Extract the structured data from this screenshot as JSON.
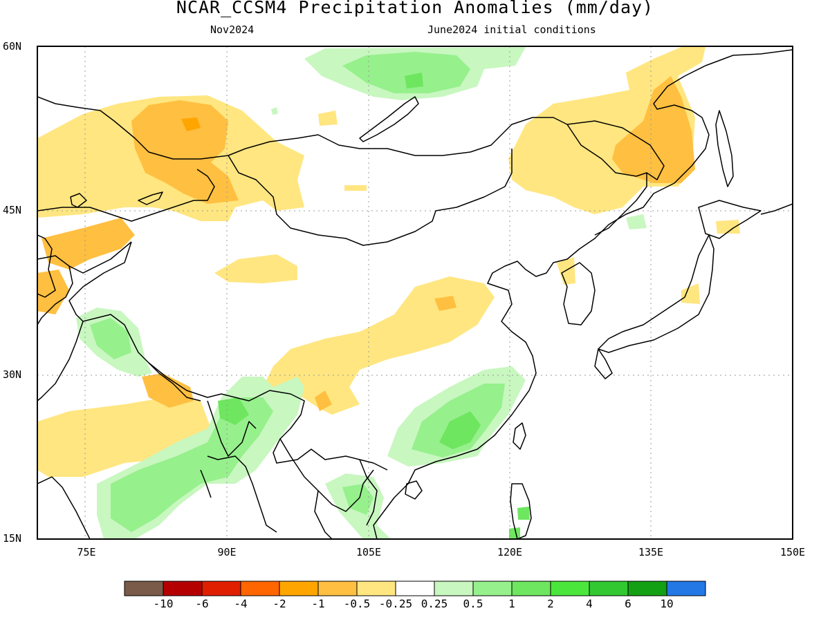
{
  "title": "NCAR_CCSM4 Precipitation Anomalies (mm/day)",
  "subtitle_left": "Nov2024",
  "subtitle_right": "June2024 initial conditions",
  "lat_labels": [
    "60N",
    "45N",
    "30N",
    "15N"
  ],
  "lon_labels": [
    "75E",
    "90E",
    "105E",
    "120E",
    "135E",
    "150E"
  ],
  "colorbar": {
    "colors": [
      "#7a5a48",
      "#b40000",
      "#e01e00",
      "#ff6600",
      "#ffa500",
      "#ffbf40",
      "#ffe680",
      "#ffffff",
      "#c8f7c0",
      "#96f08c",
      "#6ee65f",
      "#4ae63c",
      "#32c832",
      "#14a014",
      "#2378e6"
    ],
    "labels": [
      "-10",
      "-6",
      "-4",
      "-2",
      "-1",
      "-0.5",
      "-0.25",
      "0.25",
      "0.5",
      "1",
      "2",
      "4",
      "6",
      "10"
    ]
  },
  "map": {
    "projection": "lat-lon",
    "lon_range": [
      70,
      150
    ],
    "lat_range": [
      15,
      60
    ],
    "field": "precipitation anomaly (mm/day)",
    "features": [
      "coastlines",
      "country borders",
      "dotted lat/lon grid"
    ]
  }
}
